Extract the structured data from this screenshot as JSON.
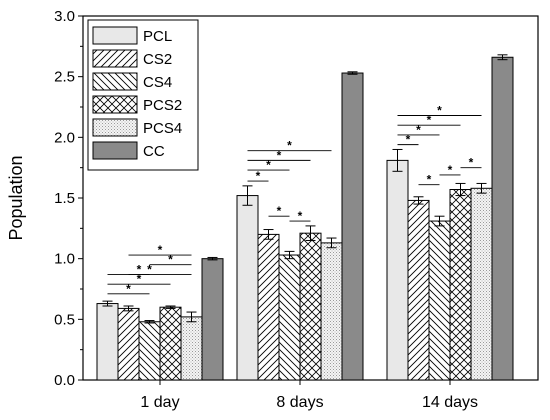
{
  "chart_data": {
    "type": "bar",
    "title": "",
    "xlabel": "",
    "ylabel": "Population",
    "ylim": [
      0,
      3.0
    ],
    "yticks": [
      0.0,
      0.5,
      1.0,
      1.5,
      2.0,
      2.5,
      3.0
    ],
    "ytick_labels": [
      "0.0",
      "0.5",
      "1.0",
      "1.5",
      "2.0",
      "2.5",
      "3.0"
    ],
    "categories": [
      "1 day",
      "8 days",
      "14 days"
    ],
    "legend_position": "top-left",
    "grid": false,
    "series": [
      {
        "name": "PCL",
        "values": [
          0.63,
          1.52,
          1.81
        ],
        "errors": [
          0.02,
          0.08,
          0.09
        ],
        "pattern": "plain-light",
        "color": "#e8e8e8"
      },
      {
        "name": "CS2",
        "values": [
          0.59,
          1.2,
          1.48
        ],
        "errors": [
          0.02,
          0.04,
          0.03
        ],
        "pattern": "hatch-forward",
        "color": "#ffffff"
      },
      {
        "name": "CS4",
        "values": [
          0.48,
          1.03,
          1.31
        ],
        "errors": [
          0.01,
          0.03,
          0.04
        ],
        "pattern": "hatch-back",
        "color": "#ffffff"
      },
      {
        "name": "PCS2",
        "values": [
          0.6,
          1.21,
          1.57
        ],
        "errors": [
          0.01,
          0.06,
          0.05
        ],
        "pattern": "crosshatch",
        "color": "#ffffff"
      },
      {
        "name": "PCS4",
        "values": [
          0.52,
          1.13,
          1.58
        ],
        "errors": [
          0.04,
          0.04,
          0.04
        ],
        "pattern": "dots",
        "color": "#f0f0f0"
      },
      {
        "name": "CC",
        "values": [
          1.0,
          2.53,
          2.66
        ],
        "errors": [
          0.01,
          0.01,
          0.02
        ],
        "pattern": "solid-dark",
        "color": "#8a8a8a"
      }
    ],
    "significance": [
      {
        "group": 0,
        "from": 0,
        "to": 2,
        "y": 0.71,
        "label": "*"
      },
      {
        "group": 0,
        "from": 0,
        "to": 3,
        "y": 0.79,
        "label": "*"
      },
      {
        "group": 0,
        "from": 0,
        "to": 4,
        "y": 0.87,
        "label": "*"
      },
      {
        "group": 0,
        "from": 1,
        "to": 2,
        "y": 0.87,
        "label": "*"
      },
      {
        "group": 0,
        "from": 2,
        "to": 4,
        "y": 0.95,
        "label": "*"
      },
      {
        "group": 0,
        "from": 1,
        "to": 4,
        "y": 1.03,
        "label": "*"
      },
      {
        "group": 1,
        "from": 0,
        "to": 1,
        "y": 1.64,
        "label": "*"
      },
      {
        "group": 1,
        "from": 0,
        "to": 2,
        "y": 1.73,
        "label": "*"
      },
      {
        "group": 1,
        "from": 0,
        "to": 3,
        "y": 1.81,
        "label": "*"
      },
      {
        "group": 1,
        "from": 0,
        "to": 4,
        "y": 1.89,
        "label": "*"
      },
      {
        "group": 1,
        "from": 1,
        "to": 2,
        "y": 1.35,
        "label": "*"
      },
      {
        "group": 1,
        "from": 2,
        "to": 3,
        "y": 1.31,
        "label": "*"
      },
      {
        "group": 2,
        "from": 0,
        "to": 1,
        "y": 1.94,
        "label": "*"
      },
      {
        "group": 2,
        "from": 0,
        "to": 2,
        "y": 2.02,
        "label": "*"
      },
      {
        "group": 2,
        "from": 0,
        "to": 3,
        "y": 2.1,
        "label": "*"
      },
      {
        "group": 2,
        "from": 0,
        "to": 4,
        "y": 2.18,
        "label": "*"
      },
      {
        "group": 2,
        "from": 1,
        "to": 2,
        "y": 1.61,
        "label": "*"
      },
      {
        "group": 2,
        "from": 2,
        "to": 3,
        "y": 1.69,
        "label": "*"
      },
      {
        "group": 2,
        "from": 3,
        "to": 4,
        "y": 1.75,
        "label": "*"
      }
    ]
  }
}
